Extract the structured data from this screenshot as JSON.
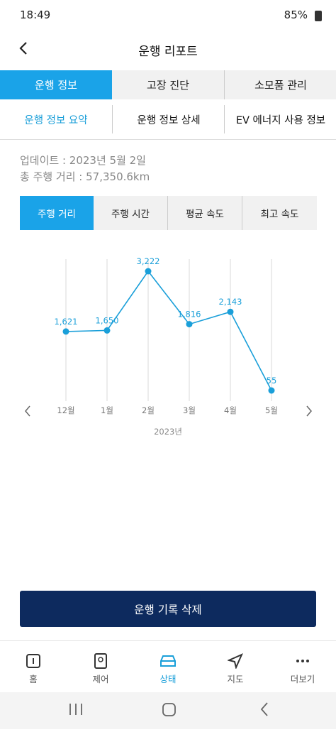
{
  "status_bar": {
    "time": "18:49",
    "battery": "85%"
  },
  "header": {
    "title": "운행 리포트"
  },
  "tabs": [
    "운행 정보",
    "고장 진단",
    "소모품 관리"
  ],
  "sub_tabs": [
    "운행 정보 요약",
    "운행 정보 상세",
    "EV 에너지 사용 정보"
  ],
  "info": {
    "updated": "업데이트 : 2023년 5월 2일",
    "total_distance": "총 주행 거리 : 57,350.6km"
  },
  "metric_tabs": [
    "주행 거리",
    "주행 시간",
    "평균 속도",
    "최고 속도"
  ],
  "chart": {
    "type": "line",
    "categories": [
      "12월",
      "1월",
      "2월",
      "3월",
      "4월",
      "5월"
    ],
    "values": [
      1621,
      1650,
      3222,
      1816,
      2143,
      55
    ],
    "value_labels": [
      "1,621",
      "1,650",
      "3,222",
      "1,816",
      "2,143",
      "55"
    ],
    "color": "#1a9fd9",
    "x_label": "2023년"
  },
  "button": "운행 기록 삭제",
  "nav": [
    "홈",
    "제어",
    "상태",
    "지도",
    "더보기"
  ]
}
